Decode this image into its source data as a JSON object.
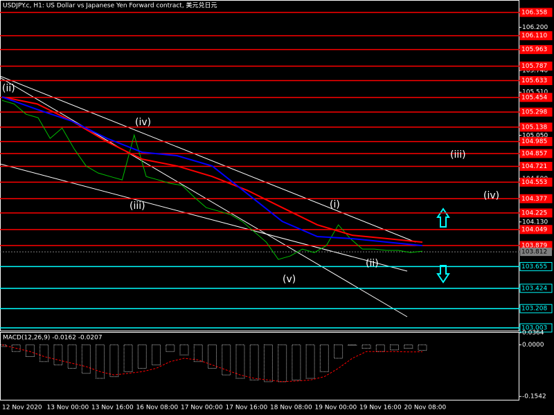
{
  "chart_data": {
    "type": "price-chart",
    "title": "USDJPY.c, H1:  US Dollar vs Japanese Yen Forward contract, 美元兑日元",
    "ylim": [
      102.974,
      106.49
    ],
    "yticks": [
      {
        "value": 106.2,
        "label": "106.200"
      },
      {
        "value": 105.74,
        "label": "105.740"
      },
      {
        "value": 105.51,
        "label": "105.510"
      },
      {
        "value": 105.05,
        "label": "105.050"
      },
      {
        "value": 104.59,
        "label": "104.590"
      },
      {
        "value": 104.13,
        "label": "104.130"
      }
    ],
    "x_labels": [
      "12 Nov 2020",
      "13 Nov 00:00",
      "13 Nov 16:00",
      "16 Nov 08:00",
      "17 Nov 00:00",
      "17 Nov 16:00",
      "18 Nov 08:00",
      "19 Nov 00:00",
      "19 Nov 16:00",
      "20 Nov 08:00"
    ],
    "levels": [
      {
        "value": 106.358,
        "label": "106.358",
        "color": "#ff0000"
      },
      {
        "value": 106.11,
        "label": "106.110",
        "color": "#ff0000"
      },
      {
        "value": 105.963,
        "label": "105.963",
        "color": "#ff0000"
      },
      {
        "value": 105.787,
        "label": "105.787",
        "color": "#ff0000"
      },
      {
        "value": 105.633,
        "label": "105.633",
        "color": "#ff0000"
      },
      {
        "value": 105.454,
        "label": "105.454",
        "color": "#ff0000"
      },
      {
        "value": 105.298,
        "label": "105.298",
        "color": "#ff0000"
      },
      {
        "value": 105.138,
        "label": "105.138",
        "color": "#ff0000"
      },
      {
        "value": 104.985,
        "label": "104.985",
        "color": "#ff0000"
      },
      {
        "value": 104.857,
        "label": "104.857",
        "color": "#ff0000"
      },
      {
        "value": 104.721,
        "label": "104.721",
        "color": "#ff0000"
      },
      {
        "value": 104.553,
        "label": "104.553",
        "color": "#ff0000"
      },
      {
        "value": 104.377,
        "label": "104.377",
        "color": "#ff0000"
      },
      {
        "value": 104.225,
        "label": "104.225",
        "color": "#ff0000"
      },
      {
        "value": 104.049,
        "label": "104.049",
        "color": "#ff0000"
      },
      {
        "value": 103.879,
        "label": "103.879",
        "color": "#ff0000"
      },
      {
        "value": 103.655,
        "label": "103.655",
        "color": "#00ffff"
      },
      {
        "value": 103.424,
        "label": "103.424",
        "color": "#00ffff"
      },
      {
        "value": 103.208,
        "label": "103.208",
        "color": "#00ffff"
      },
      {
        "value": 103.003,
        "label": "103.003",
        "color": "#00ffff"
      }
    ],
    "current_price": {
      "value": 103.812,
      "label": "103.812"
    },
    "series": [
      {
        "name": "Close",
        "color": "#00c000",
        "values": [
          105.422,
          105.385,
          105.275,
          105.238,
          105.018,
          105.128,
          104.907,
          104.724,
          104.65,
          104.613,
          104.577,
          105.054,
          104.613,
          104.577,
          104.54,
          104.518,
          104.393,
          104.282,
          104.246,
          104.209,
          104.135,
          104.025,
          103.915,
          103.731,
          103.768,
          103.841,
          103.804,
          103.878,
          104.099,
          103.952,
          103.841,
          103.841,
          103.827,
          103.827,
          103.804,
          103.819
        ]
      },
      {
        "name": "MA slow",
        "color": "#ff0000",
        "values": [
          105.459,
          105.385,
          105.201,
          104.981,
          104.797,
          104.724,
          104.613,
          104.466,
          104.282,
          104.099,
          103.988,
          103.952,
          103.915
        ]
      },
      {
        "name": "MA fast",
        "color": "#0000ff",
        "values": [
          105.459,
          105.326,
          105.201,
          105.018,
          104.871,
          104.834,
          104.724,
          104.43,
          104.135,
          103.974,
          103.952,
          103.915,
          103.878
        ]
      }
    ],
    "wave_labels": [
      {
        "text": "(ii)",
        "color": "#ffffff"
      },
      {
        "text": "(iv)",
        "color": "#ffffff"
      },
      {
        "text": "(iii)",
        "color": "#ffffff"
      },
      {
        "text": "(i)",
        "color": "#ffffff"
      },
      {
        "text": "(ii)",
        "color": "#ffffff"
      },
      {
        "text": "(v)",
        "color": "#ffffff"
      },
      {
        "text": "(iii)",
        "color": "#ffffff"
      },
      {
        "text": "(iv)",
        "color": "#ffffff"
      }
    ],
    "macd": {
      "label": "MACD(12,26,9) -0.0162 -0.0207",
      "ylim": [
        -0.162,
        0.0364
      ],
      "yticks": [
        {
          "value": 0.0364,
          "label": "0.0364"
        },
        {
          "value": 0,
          "label": "0.0000"
        },
        {
          "value": -0.1542,
          "label": "-0.1542"
        }
      ],
      "histogram": [
        -0.005,
        -0.02,
        -0.035,
        -0.05,
        -0.06,
        -0.07,
        -0.085,
        -0.1,
        -0.095,
        -0.08,
        -0.07,
        -0.06,
        -0.02,
        -0.03,
        -0.05,
        -0.07,
        -0.09,
        -0.1,
        -0.105,
        -0.11,
        -0.11,
        -0.105,
        -0.1,
        -0.08,
        -0.04,
        0.0,
        -0.01,
        -0.02,
        -0.015,
        -0.01,
        -0.0162
      ],
      "signal": [
        0,
        -0.01,
        -0.02,
        -0.035,
        -0.045,
        -0.055,
        -0.065,
        -0.08,
        -0.09,
        -0.085,
        -0.08,
        -0.07,
        -0.05,
        -0.04,
        -0.045,
        -0.06,
        -0.075,
        -0.09,
        -0.1,
        -0.105,
        -0.11,
        -0.108,
        -0.105,
        -0.095,
        -0.07,
        -0.04,
        -0.02,
        -0.02,
        -0.02,
        -0.021,
        -0.0207
      ],
      "histogram_color": "#c0c0c0",
      "signal_color": "#ff0000"
    }
  }
}
